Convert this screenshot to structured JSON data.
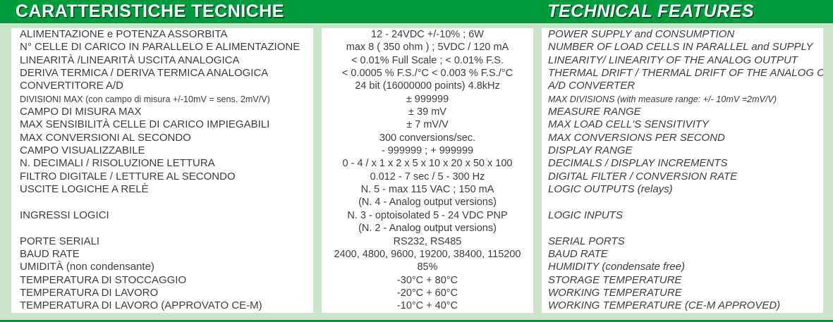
{
  "header": {
    "title_it": "CARATTERISTICHE TECNICHE",
    "title_en": "TECHNICAL FEATURES"
  },
  "colors": {
    "header_green": "#009b3d",
    "pale_green": "#cbe3ca",
    "text": "#3d3d3d"
  },
  "rows": [
    {
      "it": "ALIMENTAZIONE e POTENZA ASSORBITA",
      "value": "12 - 24VDC  +/-10% ; 6W",
      "en": "POWER SUPPLY and CONSUMPTION",
      "small": false
    },
    {
      "it": "N° CELLE DI CARICO IN PARALLELO E ALIMENTAZIONE",
      "value": "max 8 ( 350 ohm ) ; 5VDC / 120 mA",
      "en": "NUMBER OF LOAD CELLS IN PARALLEL and SUPPLY",
      "small": false
    },
    {
      "it": "LINEARITÀ /LINEARITÀ USCITA ANALOGICA",
      "value": "< 0.01% Full Scale ; < 0.01% F.S.",
      "en": "LINEARITY/ LINEARITY OF THE ANALOG OUTPUT",
      "small": false
    },
    {
      "it": "DERIVA TERMICA / DERIVA TERMICA ANALOGICA",
      "value": "< 0.0005 % F.S./°C < 0.003 % F.S./°C",
      "en": "THERMAL DRIFT / THERMAL DRIFT OF THE ANALOG OUT.",
      "small": false
    },
    {
      "it": "CONVERTITORE A/D",
      "value": "24 bit (16000000 points) 4.8kHz",
      "en": "A/D CONVERTER",
      "small": false
    },
    {
      "it": "DIVISIONI MAX (con campo di misura +/-10mV = sens. 2mV/V)",
      "value": "± 999999",
      "en": "MAX DIVISIONS (with measure range: +/- 10mV =2mV/V)",
      "small": true
    },
    {
      "it": "CAMPO DI MISURA MAX",
      "value": "± 39 mV",
      "en": "MEASURE RANGE",
      "small": false
    },
    {
      "it": "MAX SENSIBILITÀ CELLE DI CARICO IMPIEGABILI",
      "value": "± 7 mV/V",
      "en": "MAX LOAD CELL'S SENSITIVITY",
      "small": false
    },
    {
      "it": "MAX CONVERSIONI AL SECONDO",
      "value": "300 conversions/sec.",
      "en": "MAX CONVERSIONS PER SECOND",
      "small": false
    },
    {
      "it": "CAMPO VISUALIZZABILE",
      "value": "- 999999 ; + 999999",
      "en": "DISPLAY RANGE",
      "small": false
    },
    {
      "it": "N. DECIMALI / RISOLUZIONE LETTURA",
      "value": "0 - 4 / x 1 x 2 x 5 x 10 x 20 x 50 x 100",
      "en": "DECIMALS / DISPLAY INCREMENTS",
      "small": false
    },
    {
      "it": "FILTRO DIGITALE / LETTURE AL SECONDO",
      "value": "0.012 - 7 sec / 5 - 300 Hz",
      "en": "DIGITAL FILTER / CONVERSION RATE",
      "small": false
    },
    {
      "it": "USCITE LOGICHE A RELÈ",
      "value": "N. 5 - max 115 VAC ; 150 mA",
      "en": "LOGIC OUTPUTS (relays)",
      "small": false
    },
    {
      "it": "",
      "value": "(N. 4 - Analog output versions)",
      "en": "",
      "small": false
    },
    {
      "it": "INGRESSI LOGICI",
      "value": "N. 3 - optoisolated 5 - 24 VDC PNP",
      "en": "LOGIC INPUTS",
      "small": false
    },
    {
      "it": "",
      "value": "(N. 2 - Analog output versions)",
      "en": "",
      "small": false
    },
    {
      "it": "PORTE SERIALI",
      "value": "RS232, RS485",
      "en": "SERIAL PORTS",
      "small": false
    },
    {
      "it": "BAUD RATE",
      "value": "2400, 4800, 9600, 19200, 38400, 115200",
      "en": "BAUD RATE",
      "small": false
    },
    {
      "it": "UMIDITÀ (non condensante)",
      "value": "85%",
      "en": "HUMIDITY (condensate free)",
      "small": false
    },
    {
      "it": "TEMPERATURA DI STOCCAGGIO",
      "value": "-30°C + 80°C",
      "en": "STORAGE TEMPERATURE",
      "small": false
    },
    {
      "it": "TEMPERATURA DI LAVORO",
      "value": "-20°C + 60°C",
      "en": "WORKING TEMPERATURE",
      "small": false
    },
    {
      "it": "TEMPERATURA DI LAVORO (APPROVATO CE-M)",
      "value": "-10°C + 40°C",
      "en": "WORKING TEMPERATURE (CE-M APPROVED)",
      "small": false
    }
  ]
}
